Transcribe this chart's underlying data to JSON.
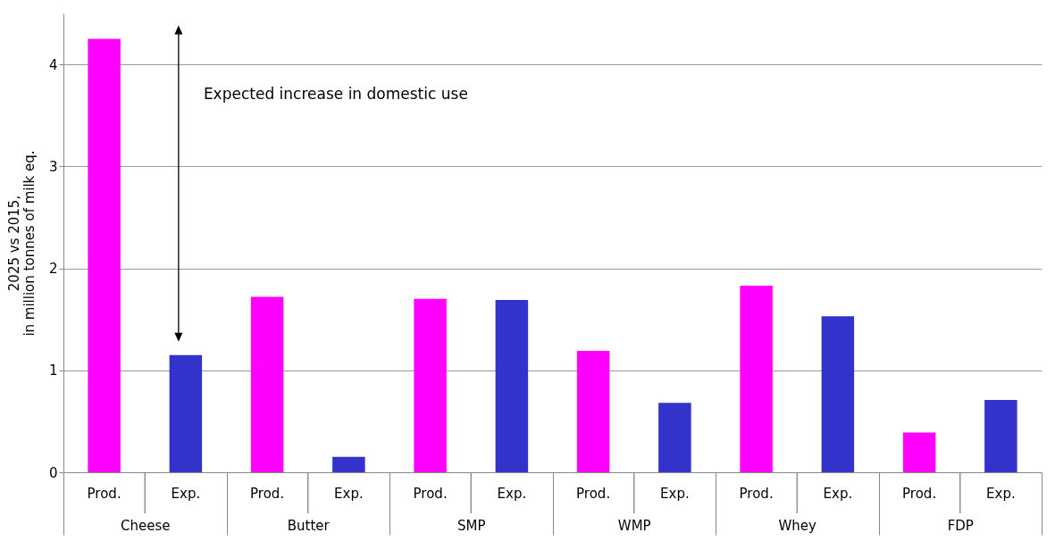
{
  "chart_data": {
    "type": "bar",
    "ylabel": "2025 vs 2015,\nin million tonnes of milk eq.",
    "categories": [
      "Cheese",
      "Butter",
      "SMP",
      "WMP",
      "Whey",
      "FDP"
    ],
    "series": [
      {
        "name": "Prod.",
        "color": "#ff00ff",
        "values": [
          4.25,
          1.72,
          1.7,
          1.19,
          1.83,
          0.39
        ]
      },
      {
        "name": "Exp.",
        "color": "#3333cc",
        "values": [
          1.15,
          0.15,
          1.69,
          0.68,
          1.53,
          0.71
        ]
      }
    ],
    "ylim": [
      0,
      4.5
    ],
    "yticks": [
      0,
      1,
      2,
      3,
      4
    ],
    "grid": "y",
    "legend": false,
    "annotations": [
      "Expected increase in domestic use"
    ]
  }
}
